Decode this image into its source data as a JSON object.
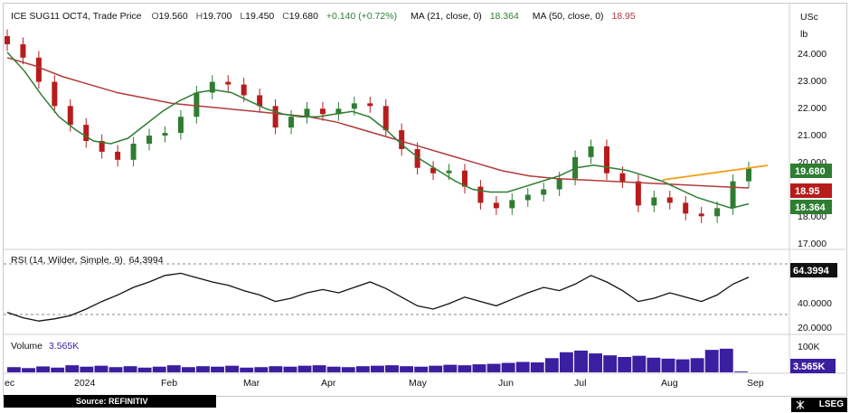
{
  "header": {
    "symbol": "ICE SUG11 OCT4, Trade Price",
    "ohlc": [
      {
        "k": "O",
        "v": "19.560"
      },
      {
        "k": "H",
        "v": "19.700"
      },
      {
        "k": "L",
        "v": "19.450"
      },
      {
        "k": "C",
        "v": "19.680"
      }
    ],
    "change": "+0.140 (+0.72%)",
    "ma21_label": "MA (21, close, 0)",
    "ma21_value": "18.364",
    "ma50_label": "MA (50, close, 0)",
    "ma50_value": "18.95"
  },
  "axis": {
    "unit_top": "USc",
    "unit_bottom": "lb",
    "price_ticks": [
      "24.000",
      "23.000",
      "22.000",
      "21.000",
      "20.000",
      "18.000",
      "17.000"
    ],
    "rsi_ticks": [
      "40.0000",
      "20.0000"
    ],
    "volume_tick": "100K",
    "x_labels": [
      "ec",
      "2024",
      "Feb",
      "Mar",
      "Apr",
      "May",
      "Jun",
      "Jul",
      "Aug",
      "Sep"
    ]
  },
  "tags": {
    "last_price": "19.680",
    "ma50": "18.95",
    "ma21": "18.364",
    "rsi": "64.3994",
    "volume": "3.565K"
  },
  "rsi_panel": {
    "label": "RSI (14, Wilder, Simple, 9)",
    "value": "64.3994"
  },
  "volume_panel": {
    "label": "Volume",
    "value": "3.565K"
  },
  "footer": {
    "source": "Source: REFINITIV",
    "brand": "LSEG"
  },
  "colors": {
    "up": "#2f7d32",
    "down": "#b71c1c",
    "ma21": "#2e7d32",
    "ma50": "#b23a3a",
    "trend": "#f39c12",
    "rsi": "#111111",
    "volume": "#3b1fa0"
  },
  "chart_data": [
    {
      "type": "line",
      "title": "ICE SUG11 OCT4, Trade Price",
      "ylabel": "USc/lb",
      "ylim": [
        16.8,
        24.6
      ],
      "x_labels": [
        "2024",
        "Feb",
        "Mar",
        "Apr",
        "May",
        "Jun",
        "Jul",
        "Aug",
        "Sep"
      ],
      "series": [
        {
          "name": "Close",
          "values": [
            24.3,
            23.8,
            22.9,
            22.0,
            21.3,
            20.7,
            20.3,
            20.0,
            20.6,
            20.9,
            21.0,
            21.6,
            22.5,
            22.9,
            22.8,
            22.4,
            22.0,
            21.2,
            21.6,
            21.9,
            21.7,
            21.9,
            22.1,
            22.0,
            21.1,
            20.4,
            19.7,
            19.5,
            19.6,
            19.0,
            18.4,
            18.2,
            18.5,
            18.7,
            18.9,
            19.3,
            20.1,
            20.5,
            19.5,
            19.2,
            18.3,
            18.6,
            18.4,
            18.0,
            17.9,
            18.2,
            19.2,
            19.68
          ]
        },
        {
          "name": "MA (21, close, 0)",
          "values": [
            24.0,
            23.3,
            22.4,
            21.6,
            21.1,
            20.7,
            20.6,
            20.8,
            21.3,
            21.8,
            22.2,
            22.5,
            22.6,
            22.5,
            22.2,
            21.9,
            21.7,
            21.6,
            21.6,
            21.7,
            21.8,
            21.6,
            21.1,
            20.5,
            20.0,
            19.6,
            19.2,
            18.9,
            18.8,
            18.8,
            19.0,
            19.2,
            19.4,
            19.7,
            19.8,
            19.7,
            19.6,
            19.4,
            19.2,
            18.9,
            18.6,
            18.4,
            18.2,
            18.364
          ]
        },
        {
          "name": "MA (50, close, 0)",
          "values": [
            23.8,
            23.5,
            23.1,
            22.8,
            22.5,
            22.3,
            22.1,
            22.0,
            21.9,
            21.8,
            21.7,
            21.6,
            21.4,
            21.1,
            20.8,
            20.5,
            20.2,
            19.9,
            19.6,
            19.4,
            19.3,
            19.25,
            19.2,
            19.15,
            19.1,
            19.05,
            19.0,
            18.95
          ]
        }
      ]
    },
    {
      "type": "line",
      "title": "RSI (14, Wilder, Simple, 9)",
      "ylim": [
        15,
        75
      ],
      "series": [
        {
          "name": "RSI",
          "values": [
            32,
            27,
            24,
            26,
            29,
            35,
            42,
            48,
            55,
            60,
            66,
            68,
            64,
            60,
            57,
            52,
            48,
            42,
            45,
            50,
            53,
            50,
            55,
            60,
            54,
            46,
            38,
            35,
            40,
            46,
            42,
            38,
            44,
            50,
            55,
            52,
            58,
            66,
            60,
            52,
            42,
            45,
            50,
            46,
            42,
            48,
            58,
            64.3994
          ]
        }
      ]
    },
    {
      "type": "bar",
      "title": "Volume",
      "ylim": [
        0,
        130
      ],
      "values": [
        22,
        18,
        25,
        20,
        30,
        24,
        28,
        22,
        26,
        20,
        24,
        30,
        22,
        26,
        24,
        28,
        20,
        22,
        26,
        24,
        28,
        30,
        24,
        22,
        26,
        28,
        30,
        26,
        24,
        28,
        32,
        30,
        34,
        36,
        40,
        44,
        42,
        60,
        85,
        92,
        80,
        72,
        65,
        70,
        62,
        58,
        55,
        60,
        95,
        100,
        3.565
      ]
    }
  ]
}
